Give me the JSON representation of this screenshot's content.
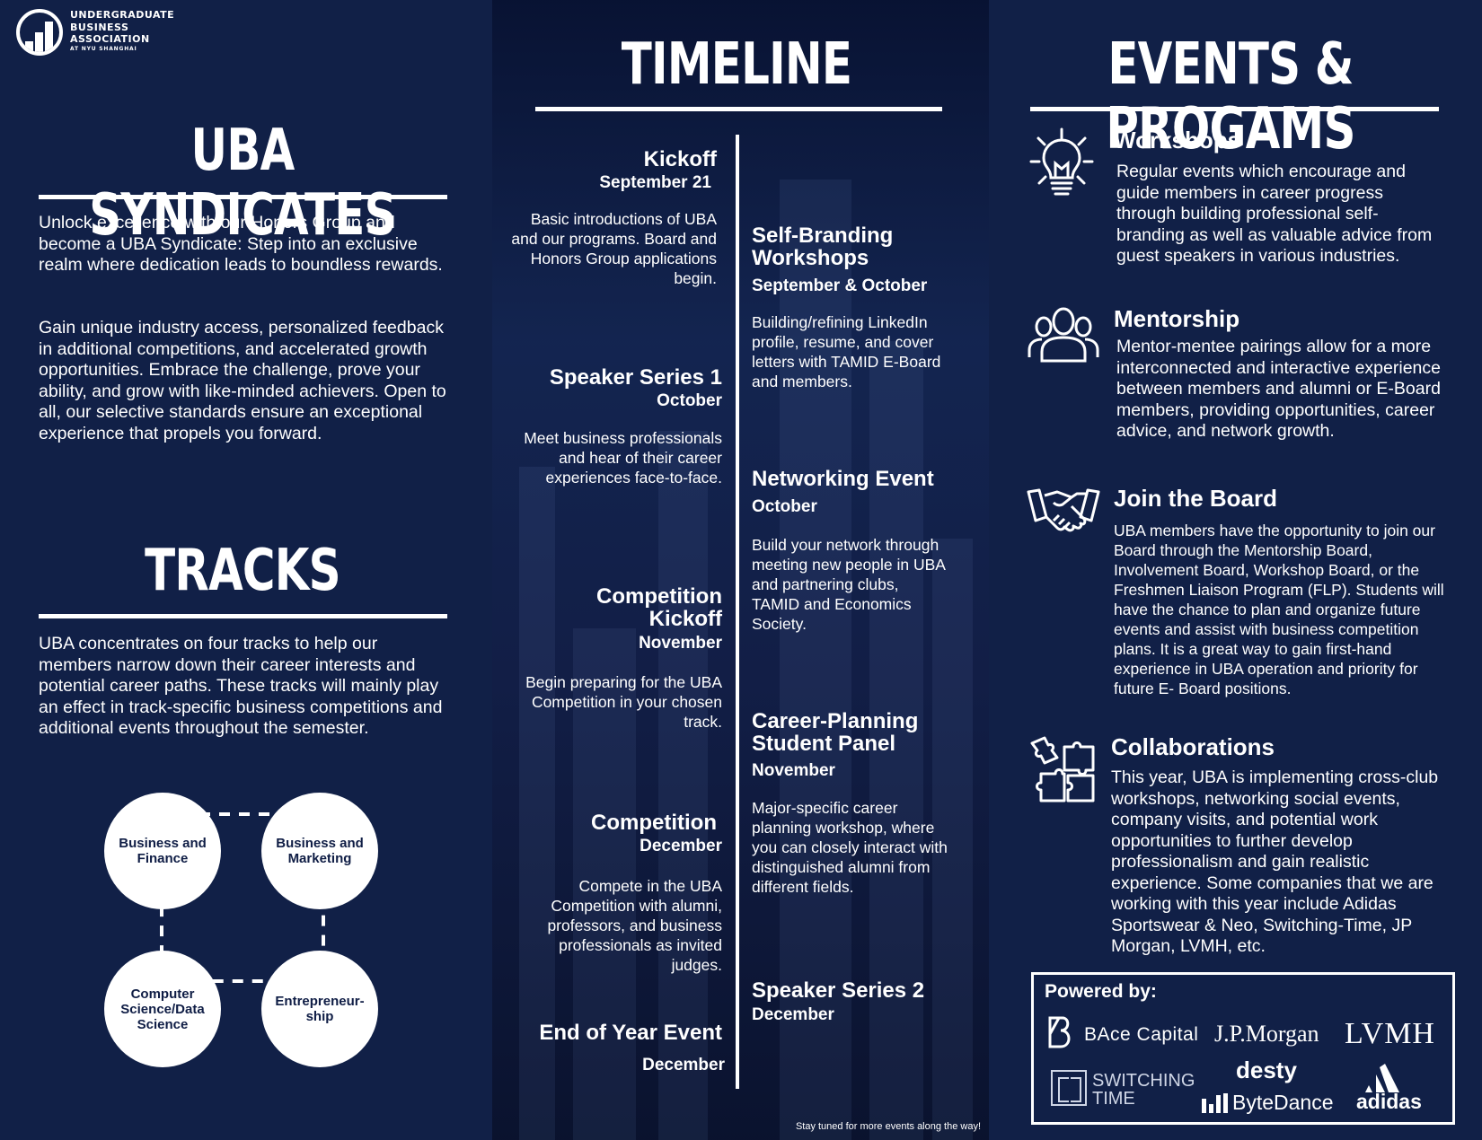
{
  "logo": {
    "line1": "UNDERGRADUATE",
    "line2": "BUSINESS",
    "line3": "ASSOCIATION",
    "sub": "AT NYU SHANGHAI"
  },
  "syndicates": {
    "title": "UBA SYNDICATES",
    "para1": "Unlock excellence with our Honors Group and become a UBA Syndicate: Step into an exclusive realm where dedication leads to boundless rewards.",
    "para2": "Gain unique industry access, personalized feedback in additional competitions, and accelerated growth opportunities. Embrace the challenge, prove your ability, and grow with like-minded achievers. Open to all, our selective standards ensure an exceptional experience that propels you forward."
  },
  "tracks": {
    "title": "TRACKS",
    "para": "UBA concentrates on four tracks to help our members narrow down their career interests and potential career paths. These tracks will mainly play an effect in track-specific business competitions and additional events throughout the semester.",
    "items": [
      "Business and Finance",
      "Business and Marketing",
      "Computer Science/Data Science",
      "Entrepreneur-ship"
    ]
  },
  "timeline": {
    "title": "TIMELINE",
    "left": [
      {
        "title": "Kickoff",
        "date": "September 21",
        "desc": "Basic introductions of UBA and our programs. Board and Honors Group applications begin."
      },
      {
        "title": "Speaker Series 1",
        "date": "October",
        "desc": "Meet business professionals and hear of their career experiences face-to-face."
      },
      {
        "title": "Competition Kickoff",
        "date": "November",
        "desc": "Begin preparing for the UBA Competition in your chosen track."
      },
      {
        "title": "Competition",
        "date": "December",
        "desc": "Compete in the UBA Competition with alumni, professors, and business professionals as invited judges."
      },
      {
        "title": "End of Year Event",
        "date": "December",
        "desc": ""
      }
    ],
    "right": [
      {
        "title": "Self-Branding Workshops",
        "date": "September & October",
        "desc": "Building/refining LinkedIn profile, resume, and cover letters with TAMID E-Board and members."
      },
      {
        "title": "Networking Event",
        "date": "October",
        "desc": "Build your network through meeting new people in UBA and partnering clubs, TAMID and Economics Society."
      },
      {
        "title": "Career-Planning Student Panel",
        "date": "November",
        "desc": "Major-specific career planning workshop, where you can closely interact with distinguished alumni from different fields."
      },
      {
        "title": "Speaker Series 2",
        "date": "December",
        "desc": ""
      }
    ],
    "footer": "Stay tuned for more events along the way!"
  },
  "events": {
    "title": "EVENTS & PROGAMS",
    "items": [
      {
        "icon": "lightbulb-icon",
        "title": "Workshops",
        "desc": "Regular events which encourage and guide members in career progress through building professional self-branding as well as valuable advice from guest speakers in various industries."
      },
      {
        "icon": "people-icon",
        "title": "Mentorship",
        "desc": "Mentor-mentee pairings allow for a more interconnected and interactive experience between members and alumni or E-Board members, providing opportunities, career advice, and network growth."
      },
      {
        "icon": "handshake-icon",
        "title": "Join the Board",
        "desc": "UBA members have the opportunity to join our Board through the Mentorship Board, Involvement Board, Workshop Board, or the Freshmen Liaison Program (FLP). Students will have the chance to plan and organize future events and assist with business competition plans. It is a great way to gain first-hand experience in UBA operation and priority for future E- Board positions."
      },
      {
        "icon": "puzzle-icon",
        "title": "Collaborations",
        "desc": "This year, UBA is implementing cross-club workshops, networking social events, company visits, and potential work opportunities to further develop professionalism and gain realistic experience. Some companies that we are working with this year include Adidas Sportswear & Neo, Switching-Time, JP Morgan, LVMH, etc."
      }
    ]
  },
  "powered": {
    "label": "Powered by:",
    "sponsors": [
      "BAce Capital",
      "J.P.Morgan",
      "LVMH",
      "SWITCHING",
      "TIME",
      "desty",
      "ByteDance",
      "adidas"
    ]
  }
}
